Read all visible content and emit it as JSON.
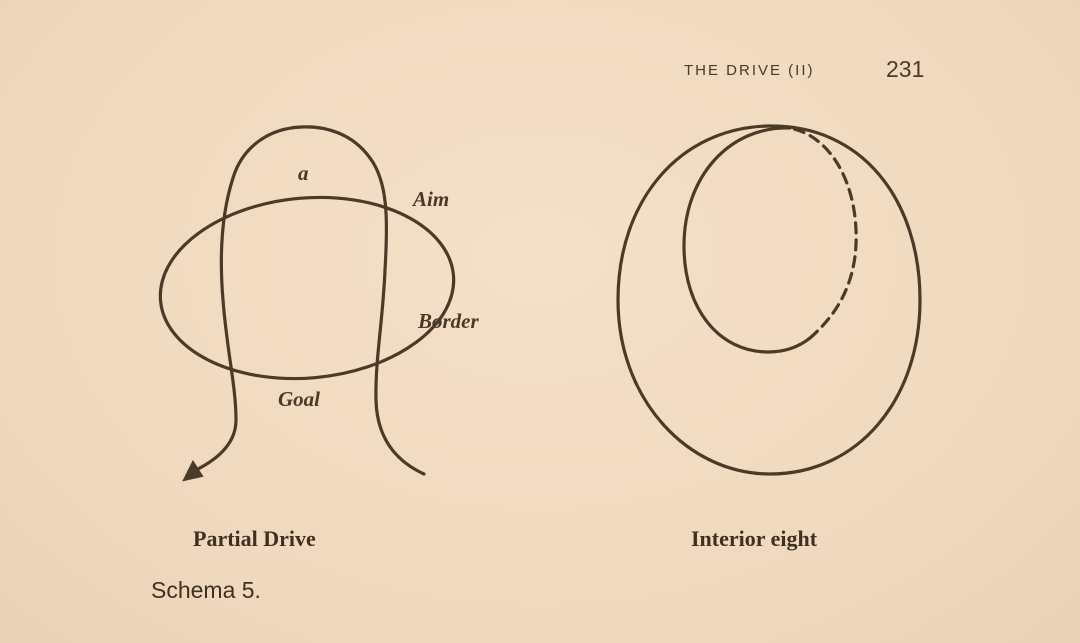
{
  "header": {
    "running_head": "THE DRIVE (II)",
    "page_number": "231"
  },
  "figure_left": {
    "labels": {
      "a": "a",
      "aim": "Aim",
      "border": "Border",
      "goal": "Goal"
    },
    "caption": "Partial Drive"
  },
  "figure_right": {
    "caption": "Interior eight"
  },
  "schema_label": "Schema 5.",
  "colors": {
    "ink": "#4a3a28",
    "paper": "#f2dcc2"
  }
}
